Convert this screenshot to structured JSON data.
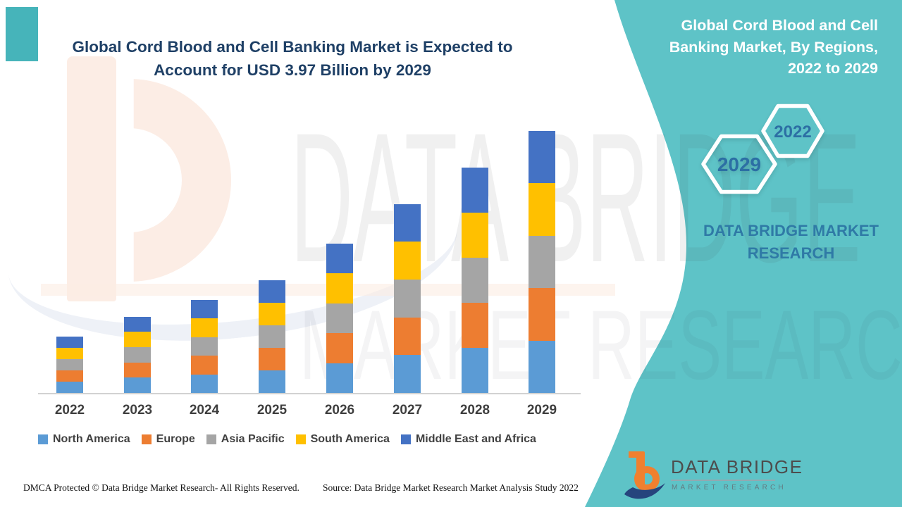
{
  "main_title": {
    "line1": "Global Cord Blood and Cell Banking Market is Expected to",
    "line2": "Account for USD 3.97 Billion by 2029"
  },
  "side_panel": {
    "panel_color": "#5EC3C7",
    "title_line1": "Global Cord Blood and Cell",
    "title_line2": "Banking Market, By Regions,",
    "title_line3": "2022 to 2029",
    "hexagon_2029": "2029",
    "hexagon_2022": "2022",
    "brand_caption_line1": "DATA BRIDGE MARKET",
    "brand_caption_line2": "RESEARCH"
  },
  "watermarks": {
    "line1": "DATA BRIDGE",
    "line2": "MARKET RESEARCH"
  },
  "chart_data": {
    "type": "bar",
    "stacked": true,
    "title": "Global Cord Blood and Cell Banking Market is Expected to Account for USD 3.97 Billion by 2029",
    "unit": "USD billion",
    "categories": [
      "2022",
      "2023",
      "2024",
      "2025",
      "2026",
      "2027",
      "2028",
      "2029"
    ],
    "totals": [
      0.84,
      1.13,
      1.42,
      1.71,
      2.27,
      2.83,
      3.4,
      3.97
    ],
    "series": [
      {
        "name": "North America",
        "color": "#5B9BD5",
        "values": [
          0.17,
          0.23,
          0.28,
          0.34,
          0.45,
          0.57,
          0.68,
          0.79
        ]
      },
      {
        "name": "Europe",
        "color": "#ED7D31",
        "values": [
          0.17,
          0.23,
          0.28,
          0.34,
          0.45,
          0.57,
          0.68,
          0.79
        ]
      },
      {
        "name": "Asia Pacific",
        "color": "#A5A5A5",
        "values": [
          0.17,
          0.23,
          0.28,
          0.34,
          0.45,
          0.57,
          0.68,
          0.79
        ]
      },
      {
        "name": "South America",
        "color": "#FFC000",
        "values": [
          0.17,
          0.23,
          0.28,
          0.34,
          0.45,
          0.57,
          0.68,
          0.79
        ]
      },
      {
        "name": "Middle East and Africa",
        "color": "#4472C4",
        "values": [
          0.17,
          0.23,
          0.28,
          0.34,
          0.45,
          0.57,
          0.68,
          0.79
        ]
      }
    ],
    "legend_position": "bottom",
    "y_axis_visible": false,
    "grid": false,
    "note": "Values estimated from bar heights; 2029 total stated as USD 3.97 billion in title"
  },
  "footer": {
    "dmca": "DMCA Protected © Data Bridge Market Research- All Rights Reserved.",
    "source": "Source: Data Bridge Market Research Market Analysis Study 2022"
  },
  "logo": {
    "name": "DATA BRIDGE",
    "subname": "MARKET RESEARCH"
  }
}
